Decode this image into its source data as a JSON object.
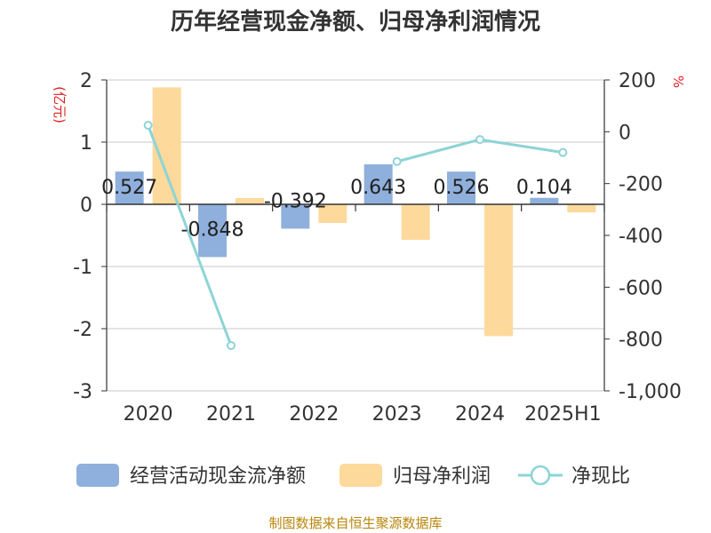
{
  "title": "历年经营现金净额、归母净利润情况",
  "source_note": "制图数据来自恒生聚源数据库",
  "chart_data": {
    "type": "bar",
    "categories": [
      "2020",
      "2021",
      "2022",
      "2023",
      "2024",
      "2025H1"
    ],
    "y_left": {
      "label": "(亿元)",
      "ticks": [
        "2",
        "1",
        "0",
        "-1",
        "-2",
        "-3"
      ],
      "ylim": [
        -3,
        2
      ]
    },
    "y_right": {
      "label": "%",
      "ticks": [
        "200",
        "0",
        "-200",
        "-400",
        "-600",
        "-800",
        "-1,000"
      ],
      "ylim": [
        -1000,
        200
      ]
    },
    "grid": true,
    "legend_position": "bottom",
    "series": [
      {
        "name": "经营活动现金流净额",
        "type": "bar",
        "axis": "left",
        "color": "#8fb0dc",
        "values": [
          0.527,
          -0.848,
          -0.392,
          0.643,
          0.526,
          0.104
        ],
        "labels": [
          "0.527",
          "-0.848",
          "-0.392",
          "0.643",
          "0.526",
          "0.104"
        ]
      },
      {
        "name": "归母净利润",
        "type": "bar",
        "axis": "left",
        "color": "#fdd99b",
        "values": [
          1.88,
          0.1,
          -0.3,
          -0.57,
          -2.12,
          -0.13
        ]
      },
      {
        "name": "净现比",
        "type": "line",
        "axis": "right",
        "color": "#8dd4d6",
        "values": [
          25,
          -825,
          null,
          -115,
          -30,
          -80
        ]
      }
    ]
  }
}
